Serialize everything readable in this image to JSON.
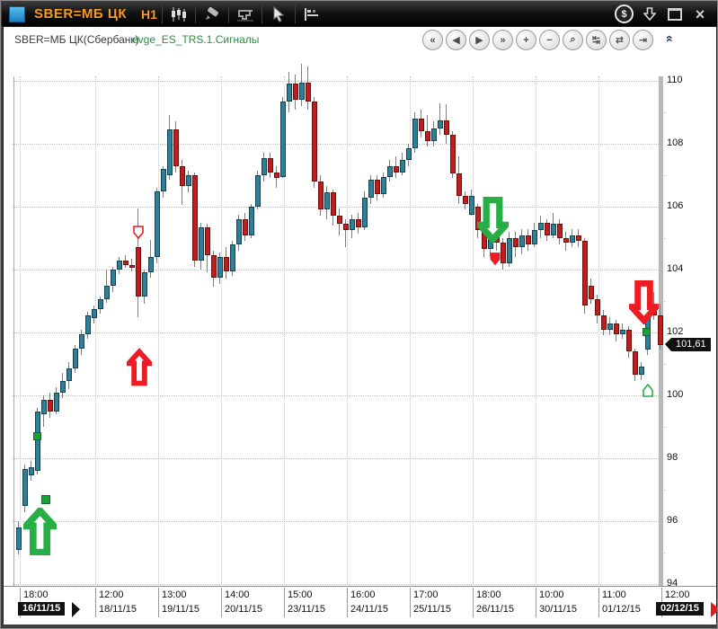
{
  "window": {
    "title": "SBER=МБ ЦК",
    "timeframe": "H1",
    "toolbar_icons": [
      "chart-type-candles",
      "draw-pencil",
      "measure-tool",
      "cursor-pointer",
      "levels-settings"
    ],
    "window_icons": {
      "money": "$",
      "download_arrow": "⇩",
      "maximize": "▭",
      "close": "×"
    }
  },
  "header": {
    "instrument": "SBER=МБ ЦК(Сбербанк)",
    "strategy": "evge_ES_TRS.1.Сигналы",
    "collapse_glyph": "«"
  },
  "nav_buttons": [
    {
      "name": "scroll-fast-left",
      "glyph": "«"
    },
    {
      "name": "scroll-left",
      "glyph": "◀"
    },
    {
      "name": "scroll-right",
      "glyph": "▶"
    },
    {
      "name": "scroll-fast-right",
      "glyph": "»"
    },
    {
      "name": "zoom-in",
      "glyph": "+"
    },
    {
      "name": "zoom-out",
      "glyph": "−"
    },
    {
      "name": "zoom-area",
      "glyph": "⌕"
    },
    {
      "name": "compress-horizontal",
      "glyph": "↹"
    },
    {
      "name": "compress-candles",
      "glyph": "⇄"
    },
    {
      "name": "go-to-end",
      "glyph": "⇥"
    }
  ],
  "price_axis": {
    "major_labels": [
      110,
      108,
      106,
      104,
      102,
      100,
      98,
      96,
      94
    ],
    "minor_steps": [
      109,
      107,
      105,
      103,
      101,
      99,
      97,
      95
    ],
    "current_price": "101,61"
  },
  "time_axis": {
    "ticks": [
      {
        "time": "18:00",
        "date": "16/11/15",
        "x": 18,
        "tag": "start"
      },
      {
        "time": "12:00",
        "date": "18/11/15",
        "x": 102,
        "tag": ""
      },
      {
        "time": "13:00",
        "date": "19/11/15",
        "x": 172,
        "tag": ""
      },
      {
        "time": "14:00",
        "date": "20/11/15",
        "x": 242,
        "tag": ""
      },
      {
        "time": "15:00",
        "date": "23/11/15",
        "x": 312,
        "tag": ""
      },
      {
        "time": "16:00",
        "date": "24/11/15",
        "x": 382,
        "tag": ""
      },
      {
        "time": "17:00",
        "date": "25/11/15",
        "x": 452,
        "tag": ""
      },
      {
        "time": "18:00",
        "date": "26/11/15",
        "x": 522,
        "tag": ""
      },
      {
        "time": "10:00",
        "date": "30/11/15",
        "x": 592,
        "tag": ""
      },
      {
        "time": "11:00",
        "date": "01/12/15",
        "x": 662,
        "tag": ""
      },
      {
        "time": "12:00",
        "date": "02/12/15",
        "x": 732,
        "tag": "end"
      }
    ]
  },
  "chart_data": {
    "type": "candlestick",
    "title": "SBER=МБ ЦК(Сбербанк) H1",
    "ylim": [
      93.5,
      110.8
    ],
    "grid": true,
    "colors": {
      "up_fill": "#2e7f99",
      "up_border": "#17404d",
      "down_fill": "#c01d1d",
      "down_border": "#6d0e0e",
      "wick": "#7d7d7d",
      "signal_green": "#27ae45",
      "signal_red": "#ec1c24"
    },
    "candles_ohlc": [
      [
        95.1,
        96.0,
        94.95,
        95.8
      ],
      [
        96.5,
        97.8,
        96.3,
        97.65
      ],
      [
        97.45,
        97.9,
        97.3,
        97.7
      ],
      [
        97.6,
        99.6,
        97.5,
        99.5
      ],
      [
        99.4,
        100.0,
        99.0,
        99.85
      ],
      [
        99.85,
        100.1,
        99.3,
        99.5
      ],
      [
        99.5,
        100.25,
        99.4,
        100.1
      ],
      [
        100.1,
        100.7,
        99.9,
        100.45
      ],
      [
        100.45,
        101.05,
        100.2,
        100.85
      ],
      [
        100.85,
        101.6,
        100.7,
        101.5
      ],
      [
        101.5,
        102.1,
        101.3,
        101.95
      ],
      [
        101.95,
        102.65,
        101.8,
        102.55
      ],
      [
        102.45,
        102.85,
        102.3,
        102.75
      ],
      [
        102.75,
        103.15,
        102.6,
        103.05
      ],
      [
        103.05,
        104.0,
        102.95,
        103.5
      ],
      [
        103.5,
        104.1,
        103.3,
        104.0
      ],
      [
        104.0,
        104.4,
        103.85,
        104.3
      ],
      [
        104.3,
        104.45,
        104.05,
        104.15
      ],
      [
        104.15,
        104.35,
        103.95,
        104.05
      ],
      [
        104.7,
        105.95,
        102.5,
        103.15
      ],
      [
        103.15,
        104.0,
        102.9,
        103.9
      ],
      [
        103.9,
        104.95,
        103.75,
        104.4
      ],
      [
        104.4,
        106.6,
        104.2,
        106.5
      ],
      [
        106.5,
        107.3,
        106.3,
        107.2
      ],
      [
        107.0,
        108.9,
        106.85,
        108.45
      ],
      [
        108.45,
        108.7,
        107.1,
        107.3
      ],
      [
        107.3,
        107.5,
        106.05,
        106.65
      ],
      [
        106.65,
        107.15,
        106.45,
        107.0
      ],
      [
        107.0,
        107.1,
        104.1,
        104.3
      ],
      [
        104.3,
        105.5,
        104.0,
        105.35
      ],
      [
        105.35,
        105.45,
        103.9,
        104.45
      ],
      [
        104.45,
        104.6,
        103.45,
        103.75
      ],
      [
        103.75,
        104.55,
        103.55,
        104.4
      ],
      [
        104.4,
        104.7,
        103.7,
        103.95
      ],
      [
        103.95,
        104.9,
        103.8,
        104.8
      ],
      [
        104.8,
        105.75,
        104.6,
        105.6
      ],
      [
        105.6,
        105.8,
        104.9,
        105.1
      ],
      [
        105.1,
        106.1,
        105.0,
        106.0
      ],
      [
        106.0,
        107.15,
        105.9,
        107.0
      ],
      [
        107.0,
        107.7,
        106.8,
        107.55
      ],
      [
        107.55,
        107.7,
        106.9,
        107.1
      ],
      [
        107.1,
        107.3,
        106.6,
        106.9
      ],
      [
        106.95,
        109.5,
        106.9,
        109.35
      ],
      [
        109.35,
        110.3,
        109.0,
        109.9
      ],
      [
        109.9,
        110.2,
        109.1,
        109.4
      ],
      [
        109.4,
        110.55,
        109.2,
        109.95
      ],
      [
        109.95,
        110.45,
        109.1,
        109.35
      ],
      [
        109.35,
        109.5,
        106.6,
        106.8
      ],
      [
        106.8,
        107.0,
        105.7,
        105.9
      ],
      [
        105.9,
        106.65,
        105.6,
        106.45
      ],
      [
        106.45,
        106.55,
        105.4,
        105.7
      ],
      [
        105.7,
        105.95,
        105.1,
        105.45
      ],
      [
        105.45,
        105.6,
        104.7,
        105.25
      ],
      [
        105.25,
        105.75,
        105.0,
        105.6
      ],
      [
        105.6,
        105.8,
        105.15,
        105.35
      ],
      [
        105.35,
        106.5,
        105.25,
        106.3
      ],
      [
        106.3,
        107.0,
        106.1,
        106.85
      ],
      [
        106.85,
        107.0,
        106.2,
        106.4
      ],
      [
        106.4,
        107.1,
        106.3,
        106.95
      ],
      [
        106.95,
        107.5,
        106.8,
        107.3
      ],
      [
        107.3,
        107.6,
        106.9,
        107.1
      ],
      [
        107.1,
        107.7,
        107.0,
        107.5
      ],
      [
        107.5,
        108.0,
        107.3,
        107.85
      ],
      [
        107.85,
        109.0,
        107.7,
        108.8
      ],
      [
        108.8,
        109.1,
        108.2,
        108.4
      ],
      [
        108.4,
        108.9,
        107.9,
        108.1
      ],
      [
        108.1,
        108.7,
        107.9,
        108.5
      ],
      [
        108.5,
        109.3,
        108.3,
        108.75
      ],
      [
        108.75,
        109.25,
        108.0,
        108.3
      ],
      [
        108.3,
        108.4,
        106.9,
        107.05
      ],
      [
        107.05,
        107.6,
        106.1,
        106.35
      ],
      [
        106.35,
        106.5,
        105.9,
        106.1
      ],
      [
        105.75,
        106.55,
        105.7,
        106.35
      ],
      [
        106.0,
        106.1,
        105.0,
        105.25
      ],
      [
        105.25,
        105.5,
        104.4,
        104.65
      ],
      [
        104.65,
        105.45,
        104.4,
        105.3
      ],
      [
        105.3,
        105.4,
        104.6,
        104.85
      ],
      [
        104.85,
        105.0,
        104.0,
        104.2
      ],
      [
        104.2,
        105.2,
        104.1,
        105.0
      ],
      [
        105.0,
        105.2,
        104.4,
        104.7
      ],
      [
        104.7,
        105.3,
        104.5,
        105.1
      ],
      [
        105.1,
        105.3,
        104.6,
        104.8
      ],
      [
        104.8,
        105.5,
        104.7,
        105.25
      ],
      [
        105.25,
        105.7,
        105.0,
        105.5
      ],
      [
        105.5,
        105.6,
        104.9,
        105.1
      ],
      [
        105.1,
        105.8,
        105.0,
        105.45
      ],
      [
        105.45,
        105.6,
        104.8,
        105.0
      ],
      [
        105.0,
        105.2,
        104.6,
        104.85
      ],
      [
        104.85,
        105.3,
        104.7,
        105.1
      ],
      [
        105.1,
        105.3,
        104.7,
        104.9
      ],
      [
        104.9,
        105.0,
        102.6,
        102.85
      ],
      [
        103.5,
        103.7,
        102.9,
        103.05
      ],
      [
        103.05,
        103.2,
        102.3,
        102.55
      ],
      [
        102.55,
        102.7,
        101.9,
        102.1
      ],
      [
        102.1,
        102.5,
        101.9,
        102.3
      ],
      [
        102.3,
        102.4,
        101.7,
        101.95
      ],
      [
        101.95,
        102.3,
        101.8,
        102.1
      ],
      [
        102.1,
        102.2,
        101.2,
        101.4
      ],
      [
        101.4,
        101.5,
        100.45,
        100.65
      ],
      [
        100.65,
        101.05,
        100.5,
        100.9
      ],
      [
        101.45,
        102.9,
        101.3,
        102.8
      ],
      [
        102.75,
        103.3,
        102.4,
        102.55
      ],
      [
        102.55,
        102.9,
        101.45,
        101.61
      ]
    ],
    "signals": [
      {
        "name": "buy-arrow-1",
        "type": "arrow-up",
        "color": "green",
        "x": 22,
        "y": 536,
        "w": 37,
        "h": 53
      },
      {
        "name": "exit-arrow-1",
        "type": "arrow-up",
        "color": "red",
        "x": 137,
        "y": 357,
        "w": 28,
        "h": 46
      },
      {
        "name": "sell-arrow-1",
        "type": "arrow-down",
        "color": "green",
        "x": 527,
        "y": 187,
        "w": 35,
        "h": 57
      },
      {
        "name": "sell-arrow-2",
        "type": "arrow-down",
        "color": "red",
        "x": 696,
        "y": 282,
        "w": 33,
        "h": 50
      },
      {
        "name": "entry-dot-1",
        "type": "dot",
        "color": "green",
        "x": 33,
        "y": 452,
        "w": 9,
        "h": 9
      },
      {
        "name": "entry-dot-2",
        "type": "dot",
        "color": "green",
        "x": 42,
        "y": 522,
        "w": 10,
        "h": 10
      },
      {
        "name": "entry-dot-3",
        "type": "dot",
        "color": "green",
        "x": 711,
        "y": 336,
        "w": 9,
        "h": 9
      },
      {
        "name": "signal-open-marker",
        "type": "marker-down",
        "color": "red",
        "fill": "none",
        "x": 144,
        "y": 222,
        "w": 12,
        "h": 15
      },
      {
        "name": "signal-fill-marker",
        "type": "marker-down",
        "color": "red",
        "fill": "solid",
        "x": 541,
        "y": 252,
        "w": 12,
        "h": 14
      },
      {
        "name": "signal-open-marker-up",
        "type": "marker-up",
        "color": "green",
        "fill": "none",
        "x": 711,
        "y": 398,
        "w": 12,
        "h": 15
      }
    ]
  }
}
